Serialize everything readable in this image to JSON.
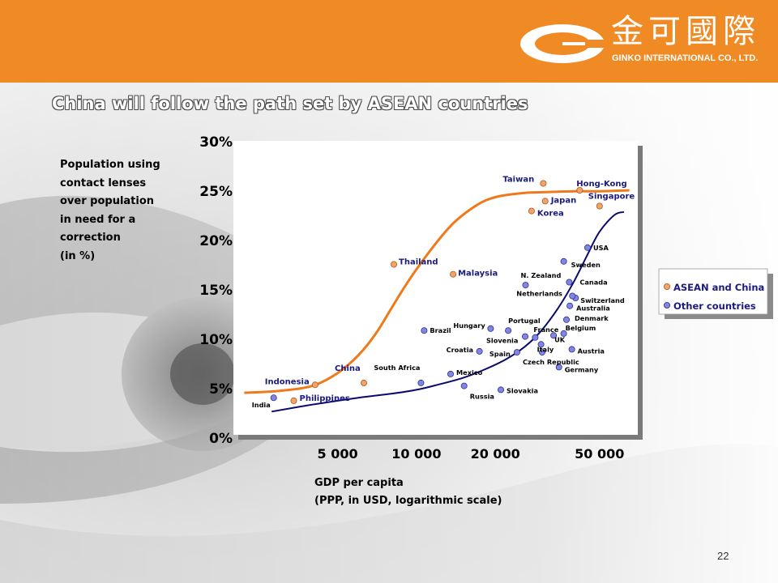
{
  "header": {
    "company_cn": "金可國際",
    "company_en": "GINKO INTERNATIONAL CO., LTD."
  },
  "title": "China will follow the path set by ASEAN countries",
  "page_number": "22",
  "colors": {
    "header": "#f08a24",
    "asean": "#f4a468",
    "other": "#7f86e6",
    "asean_line": "#ee7a1c",
    "other_line": "#0a0a6e"
  },
  "chart_data": {
    "type": "scatter",
    "title": "China will follow the path set by ASEAN countries",
    "ylabel_lines": [
      "Population using",
      "contact lenses",
      "over population",
      "in need for a",
      "correction",
      "(in %)"
    ],
    "xlabel_lines": [
      "GDP per capita",
      "(PPP, in USD, logarithmic scale)"
    ],
    "x_scale": "log",
    "xlim": [
      2000,
      70000
    ],
    "ylim": [
      0,
      30
    ],
    "y_ticks": [
      "0%",
      "5%",
      "10%",
      "15%",
      "20%",
      "25%",
      "30%"
    ],
    "x_ticks": [
      {
        "value": 5000,
        "label": "5 000"
      },
      {
        "value": 10000,
        "label": "10 000"
      },
      {
        "value": 20000,
        "label": "20 000"
      },
      {
        "value": 50000,
        "label": "50 000"
      }
    ],
    "grid": false,
    "legend_position": "right",
    "series": [
      {
        "name": "ASEAN and China",
        "points": [
          {
            "label": "Indonesia",
            "x": 4100,
            "y": 5.3
          },
          {
            "label": "Philippines",
            "x": 3400,
            "y": 3.7
          },
          {
            "label": "China",
            "x": 6300,
            "y": 5.5
          },
          {
            "label": "Thailand",
            "x": 8200,
            "y": 17.5
          },
          {
            "label": "Malaysia",
            "x": 13800,
            "y": 16.5
          },
          {
            "label": "Korea",
            "x": 27500,
            "y": 22.9
          },
          {
            "label": "Japan",
            "x": 31000,
            "y": 23.9
          },
          {
            "label": "Taiwan",
            "x": 30500,
            "y": 25.7
          },
          {
            "label": "Hong-Kong",
            "x": 42000,
            "y": 25.0
          },
          {
            "label": "Singapore",
            "x": 50000,
            "y": 23.4
          }
        ]
      },
      {
        "name": "Other countries",
        "points": [
          {
            "label": "India",
            "x": 2850,
            "y": 4.0
          },
          {
            "label": "South Africa",
            "x": 10400,
            "y": 5.5
          },
          {
            "label": "Brazil",
            "x": 10700,
            "y": 10.8
          },
          {
            "label": "Mexico",
            "x": 13500,
            "y": 6.4
          },
          {
            "label": "Russia",
            "x": 15200,
            "y": 5.2
          },
          {
            "label": "Hungary",
            "x": 19200,
            "y": 11.0
          },
          {
            "label": "Croatia",
            "x": 17400,
            "y": 8.7
          },
          {
            "label": "Slovakia",
            "x": 21000,
            "y": 4.8
          },
          {
            "label": "Portugal",
            "x": 22400,
            "y": 10.8
          },
          {
            "label": "Spain",
            "x": 24200,
            "y": 8.6
          },
          {
            "label": "Slovenia",
            "x": 26000,
            "y": 10.2
          },
          {
            "label": "France",
            "x": 28400,
            "y": 10.1
          },
          {
            "label": "Italy",
            "x": 29900,
            "y": 9.4
          },
          {
            "label": "UK",
            "x": 33400,
            "y": 10.3
          },
          {
            "label": "Czech Republic",
            "x": 30200,
            "y": 8.6
          },
          {
            "label": "Germany",
            "x": 35000,
            "y": 7.1
          },
          {
            "label": "Belgium",
            "x": 36500,
            "y": 10.5
          },
          {
            "label": "Austria",
            "x": 39200,
            "y": 8.9
          },
          {
            "label": "Denmark",
            "x": 37400,
            "y": 11.9
          },
          {
            "label": "Australia",
            "x": 38500,
            "y": 13.3
          },
          {
            "label": "Switzerland",
            "x": 40500,
            "y": 14.1
          },
          {
            "label": "Netherlands",
            "x": 39400,
            "y": 14.3
          },
          {
            "label": "Canada",
            "x": 38300,
            "y": 15.7
          },
          {
            "label": "N. Zealand",
            "x": 26100,
            "y": 15.4
          },
          {
            "label": "Sweden",
            "x": 36500,
            "y": 17.8
          },
          {
            "label": "USA",
            "x": 45000,
            "y": 19.2
          }
        ]
      }
    ],
    "curves": [
      {
        "series": "ASEAN and China",
        "points": [
          [
            2200,
            4.5
          ],
          [
            3000,
            4.7
          ],
          [
            4000,
            5.2
          ],
          [
            5000,
            6.5
          ],
          [
            6000,
            8.3
          ],
          [
            7000,
            10.5
          ],
          [
            8000,
            13.0
          ],
          [
            9000,
            15.2
          ],
          [
            10000,
            17.0
          ],
          [
            12000,
            19.8
          ],
          [
            14000,
            21.8
          ],
          [
            17000,
            23.5
          ],
          [
            20000,
            24.3
          ],
          [
            25000,
            24.7
          ],
          [
            30000,
            24.8
          ],
          [
            40000,
            24.9
          ],
          [
            50000,
            24.9
          ],
          [
            65000,
            25.0
          ]
        ]
      },
      {
        "series": "Other countries",
        "points": [
          [
            2800,
            2.6
          ],
          [
            4000,
            3.3
          ],
          [
            6000,
            4.0
          ],
          [
            8000,
            4.4
          ],
          [
            10000,
            4.8
          ],
          [
            12000,
            5.3
          ],
          [
            15000,
            6.0
          ],
          [
            18000,
            6.8
          ],
          [
            22000,
            7.9
          ],
          [
            26000,
            9.2
          ],
          [
            30000,
            10.8
          ],
          [
            35000,
            13.2
          ],
          [
            40000,
            15.8
          ],
          [
            45000,
            18.5
          ],
          [
            50000,
            20.8
          ],
          [
            57000,
            22.5
          ],
          [
            62000,
            22.8
          ]
        ]
      }
    ]
  }
}
